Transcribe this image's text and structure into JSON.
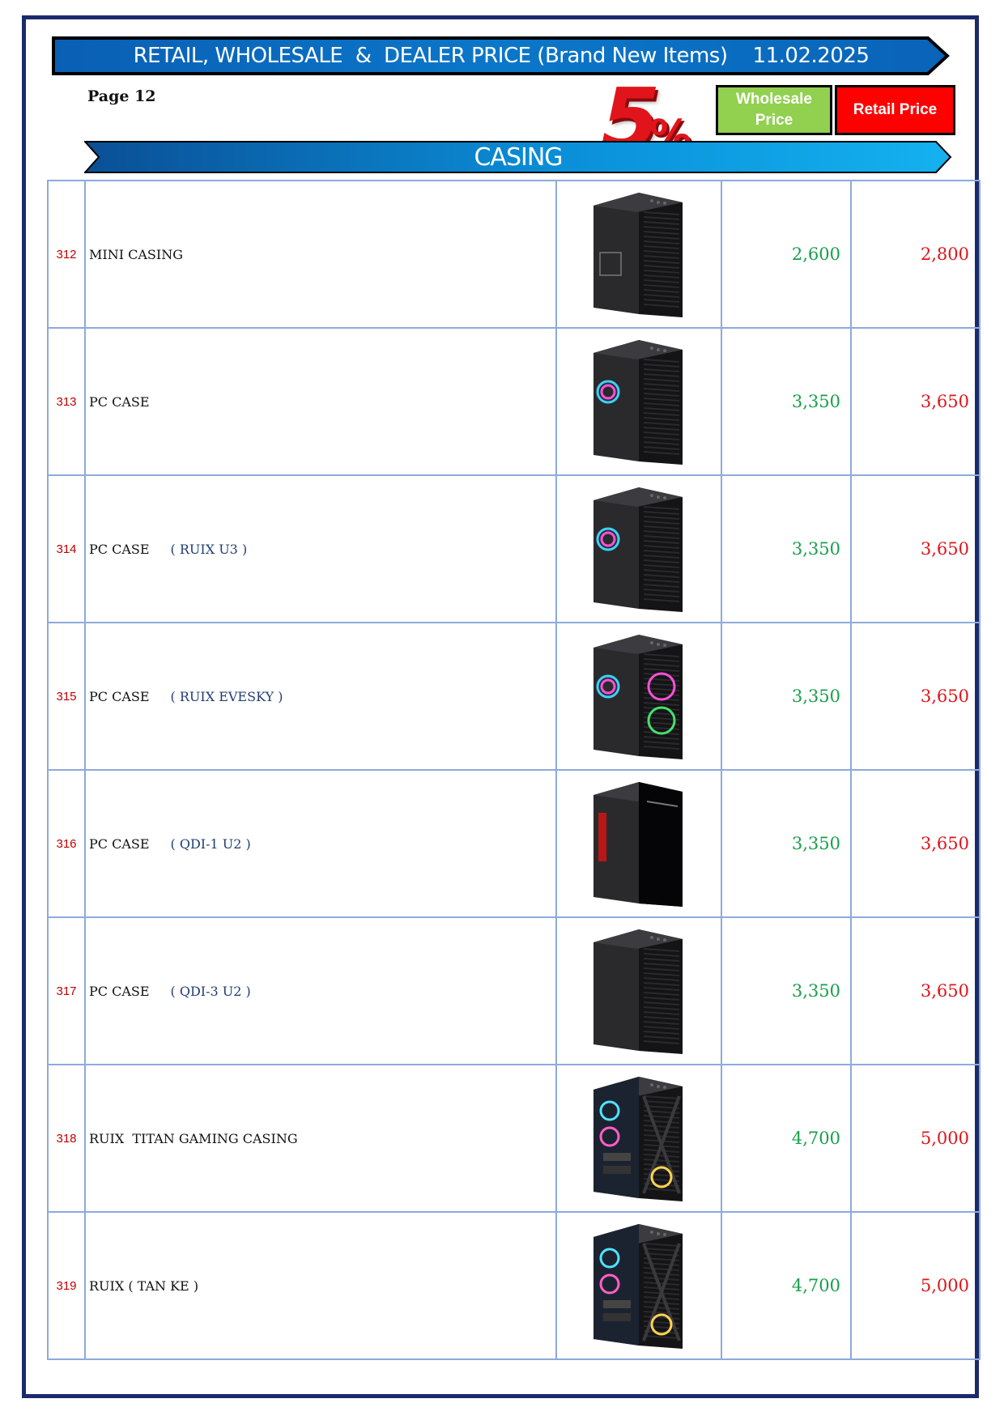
{
  "header": {
    "title": "RETAIL, WHOLESALE  &  DEALER PRICE (Brand New Items)    11.02.2025",
    "page_label": "Page 12",
    "promo_number": "5",
    "promo_symbol": "%",
    "wholesale_label": "Wholesale Price",
    "retail_label": "Retail Price"
  },
  "section": {
    "title": "CASING"
  },
  "colors": {
    "wholesale": "#92d050",
    "retail": "#ff0000",
    "banner": "#0b77c9",
    "frame": "#1b2a6b"
  },
  "items": [
    {
      "no": "312",
      "name": "MINI CASING",
      "model": "",
      "wholesale": "2,600",
      "retail": "2,800",
      "image": "mini-tower-case-black"
    },
    {
      "no": "313",
      "name": "PC CASE",
      "model": "",
      "wholesale": "3,350",
      "retail": "3,650",
      "image": "tower-case-rgb-fan"
    },
    {
      "no": "314",
      "name": "PC CASE",
      "model": "( RUIX U3 )",
      "wholesale": "3,350",
      "retail": "3,650",
      "image": "tower-case-rgb-fan"
    },
    {
      "no": "315",
      "name": "PC CASE",
      "model": "( RUIX EVESKY )",
      "wholesale": "3,350",
      "retail": "3,650",
      "image": "tower-case-mesh-dual-fan"
    },
    {
      "no": "316",
      "name": "PC CASE",
      "model": "( QDI-1 U2 )",
      "wholesale": "3,350",
      "retail": "3,650",
      "image": "tower-case-glossy-red"
    },
    {
      "no": "317",
      "name": "PC CASE",
      "model": "( QDI-3 U2 )",
      "wholesale": "3,350",
      "retail": "3,650",
      "image": "tower-case-black"
    },
    {
      "no": "318",
      "name": "RUIX  TITAN GAMING CASING",
      "model": "",
      "wholesale": "4,700",
      "retail": "5,000",
      "image": "gaming-case-glass-rgb"
    },
    {
      "no": "319",
      "name": "RUIX ( TAN KE )",
      "model": "",
      "wholesale": "4,700",
      "retail": "5,000",
      "image": "gaming-case-glass-rgb"
    }
  ]
}
